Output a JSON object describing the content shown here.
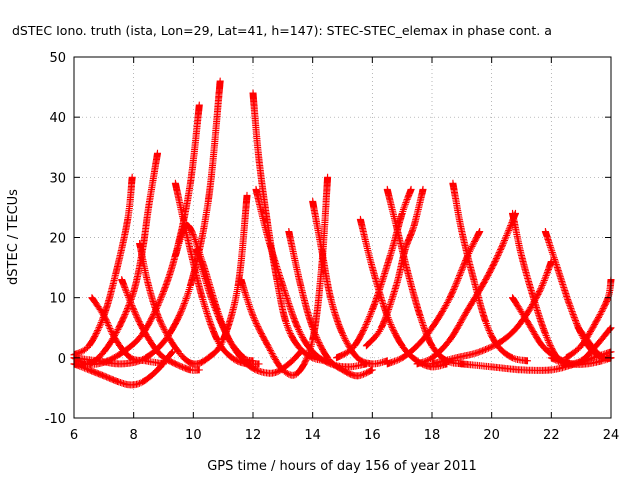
{
  "chart_data": {
    "type": "scatter",
    "title": "dSTEC Iono. truth (ista, Lon=29, Lat=41, h=147): STEC-STEC_elemax in phase cont. a",
    "xlabel": "GPS time / hours of day 156 of year 2011",
    "ylabel": "dSTEC  / TECUs",
    "xlim": [
      6,
      24
    ],
    "ylim": [
      -10,
      50
    ],
    "xticks": [
      6,
      8,
      10,
      12,
      14,
      16,
      18,
      20,
      22,
      24
    ],
    "yticks": [
      -10,
      0,
      10,
      20,
      30,
      40,
      50
    ],
    "grid": true,
    "marker": "+",
    "color": "#ff0000",
    "series": [
      {
        "x": [
          6.0,
          6.5,
          7.0,
          7.4,
          7.8,
          7.95
        ],
        "y": [
          0.5,
          2,
          7,
          14,
          23,
          30
        ]
      },
      {
        "x": [
          6.0,
          6.5,
          7.0,
          7.5,
          8.0,
          8.3,
          8.5,
          8.8
        ],
        "y": [
          0,
          -1,
          1,
          5,
          11,
          18,
          25,
          34
        ]
      },
      {
        "x": [
          6.0,
          6.8,
          7.5,
          8.3,
          9.0,
          9.5,
          9.9,
          10.2
        ],
        "y": [
          -1,
          -1,
          0.5,
          4,
          11,
          19,
          29,
          42
        ]
      },
      {
        "x": [
          6.0,
          6.8,
          7.6,
          8.4,
          9.2,
          9.9,
          10.5,
          10.9
        ],
        "y": [
          0,
          -0.5,
          -1,
          0,
          4,
          12,
          26,
          46
        ]
      },
      {
        "x": [
          6.6,
          7.0,
          7.4,
          7.9,
          8.4,
          9.0
        ],
        "y": [
          10,
          7,
          3,
          0,
          -0.5,
          -1
        ]
      },
      {
        "x": [
          6.0,
          6.5,
          7.0,
          7.5,
          7.9,
          8.3,
          8.8,
          9.3
        ],
        "y": [
          -1,
          -2,
          -3,
          -4,
          -4.5,
          -4,
          -2,
          1
        ]
      },
      {
        "x": [
          7.6,
          8.0,
          8.4,
          8.9,
          9.4,
          9.9,
          10.2
        ],
        "y": [
          13,
          8,
          4,
          0.5,
          -1,
          -2,
          -2
        ]
      },
      {
        "x": [
          8.2,
          8.5,
          8.9,
          9.5,
          10.0,
          10.5,
          11.0,
          11.5,
          11.8
        ],
        "y": [
          19,
          12,
          6,
          1,
          -1,
          0,
          3,
          12,
          27
        ]
      },
      {
        "x": [
          9.4,
          9.8,
          10.3,
          10.8,
          11.3,
          11.8,
          12.2
        ],
        "y": [
          29,
          20,
          10,
          3,
          0,
          -1,
          -1
        ]
      },
      {
        "x": [
          9.4,
          9.8,
          10.3,
          10.8,
          11.2,
          11.7,
          12.0
        ],
        "y": [
          17,
          22,
          16,
          8,
          3,
          0,
          -0.5
        ]
      },
      {
        "x": [
          10.1,
          10.6,
          11.1,
          11.6,
          12.1,
          12.7,
          13.2,
          13.6
        ],
        "y": [
          18,
          10,
          4,
          0,
          -2,
          -2.5,
          -1,
          1
        ]
      },
      {
        "x": [
          12.0,
          12.2,
          12.5,
          12.8,
          13.1,
          13.5,
          14.0,
          14.5
        ],
        "y": [
          44,
          33,
          22,
          13,
          6,
          2,
          0,
          -0.5
        ]
      },
      {
        "x": [
          12.1,
          12.5,
          13.0,
          13.5,
          14.0,
          14.6,
          15.2,
          15.8
        ],
        "y": [
          28,
          20,
          12,
          5,
          1,
          -1,
          -1.5,
          -1
        ]
      },
      {
        "x": [
          11.6,
          12.0,
          12.5,
          13.0,
          13.5,
          14.0,
          14.3,
          14.5
        ],
        "y": [
          13,
          7,
          2,
          -2,
          -2.5,
          3,
          15,
          30
        ]
      },
      {
        "x": [
          13.2,
          13.6,
          14.0,
          14.5,
          15.0,
          15.5,
          16.0
        ],
        "y": [
          21,
          12,
          5,
          0,
          -2,
          -3,
          -2
        ]
      },
      {
        "x": [
          14.0,
          14.3,
          14.6,
          15.0,
          15.5,
          16.0,
          16.5
        ],
        "y": [
          26,
          18,
          10,
          4,
          0,
          -1,
          -0.5
        ]
      },
      {
        "x": [
          14.8,
          15.4,
          16.0,
          16.6,
          17.0,
          17.3
        ],
        "y": [
          0,
          2,
          8,
          17,
          24,
          28
        ]
      },
      {
        "x": [
          15.6,
          16.0,
          16.5,
          17.0,
          17.5,
          18.0,
          18.5
        ],
        "y": [
          23,
          15,
          7,
          2,
          -0.5,
          -1.5,
          -1
        ]
      },
      {
        "x": [
          16.5,
          16.8,
          17.2,
          17.6,
          18.0,
          18.5,
          19.0
        ],
        "y": [
          28,
          22,
          14,
          7,
          2,
          -0.5,
          -1
        ]
      },
      {
        "x": [
          15.8,
          16.3,
          16.8,
          17.1,
          17.4,
          17.7
        ],
        "y": [
          2,
          5,
          12,
          18,
          22,
          28
        ]
      },
      {
        "x": [
          16.5,
          17.0,
          17.5,
          18.0,
          18.6,
          19.2,
          19.6
        ],
        "y": [
          -1,
          0,
          2,
          5,
          10,
          17,
          21
        ]
      },
      {
        "x": [
          18.7,
          19.0,
          19.4,
          19.8,
          20.2,
          20.7,
          21.2
        ],
        "y": [
          29,
          21,
          13,
          6,
          2,
          0,
          -0.5
        ]
      },
      {
        "x": [
          17.5,
          18.0,
          18.6,
          19.2,
          19.8,
          20.3,
          20.8
        ],
        "y": [
          -1,
          0,
          3,
          8,
          13,
          18,
          24
        ]
      },
      {
        "x": [
          20.7,
          21.0,
          21.4,
          21.8,
          22.2,
          22.6
        ],
        "y": [
          24,
          17,
          10,
          4,
          0,
          -1
        ]
      },
      {
        "x": [
          18.0,
          18.8,
          19.6,
          20.4,
          21.0,
          21.6,
          22.0
        ],
        "y": [
          -1,
          0,
          1,
          3,
          6,
          11,
          16
        ]
      },
      {
        "x": [
          20.7,
          21.2,
          21.7,
          22.2,
          22.7,
          23.2,
          23.7,
          24.0
        ],
        "y": [
          10,
          6,
          2,
          0,
          -1,
          -1,
          -0.5,
          0
        ]
      },
      {
        "x": [
          21.8,
          22.2,
          22.6,
          23.0,
          23.4,
          23.8,
          24.0
        ],
        "y": [
          21,
          15,
          9,
          4,
          1,
          0,
          0
        ]
      },
      {
        "x": [
          19.0,
          20.0,
          21.0,
          22.0,
          22.8,
          23.4,
          24.0
        ],
        "y": [
          -1,
          -1.5,
          -2,
          -2,
          -1,
          0,
          1
        ]
      },
      {
        "x": [
          22.0,
          22.5,
          23.0,
          23.5,
          24.0
        ],
        "y": [
          0,
          -1,
          -0.5,
          2,
          5
        ]
      },
      {
        "x": [
          22.5,
          23.0,
          23.5,
          23.9,
          24.0
        ],
        "y": [
          0,
          2,
          6,
          10,
          13
        ]
      },
      {
        "x": [
          22.9,
          23.2,
          23.5,
          23.8,
          24.0
        ],
        "y": [
          5,
          3,
          1,
          0,
          0
        ]
      }
    ]
  }
}
